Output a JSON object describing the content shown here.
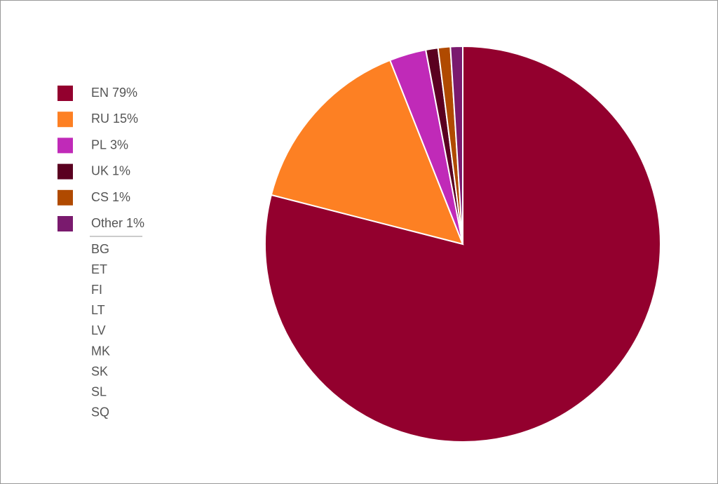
{
  "chart_data": {
    "type": "pie",
    "categories": [
      "EN",
      "RU",
      "PL",
      "UK",
      "CS",
      "Other"
    ],
    "values": [
      79,
      15,
      3,
      1,
      1,
      1
    ],
    "value_labels": [
      "79%",
      "15%",
      "3%",
      "1%",
      "1%",
      "1%"
    ],
    "colors": [
      "#93002e",
      "#fd8023",
      "#c02ab8",
      "#5a0020",
      "#b04a00",
      "#7a1a6e"
    ],
    "other_members": [
      "BG",
      "ET",
      "FI",
      "LT",
      "LV",
      "MK",
      "SK",
      "SL",
      "SQ"
    ],
    "legend": "left"
  }
}
